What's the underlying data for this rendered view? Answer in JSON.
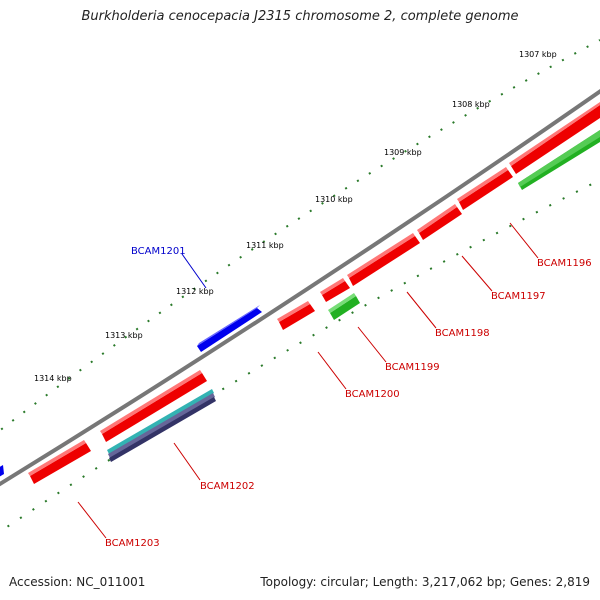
{
  "title": "Burkholderia cenocepacia J2315 chromosome 2, complete genome",
  "accession": "Accession: NC_011001",
  "summary": "Topology: circular; Length: 3,217,062 bp; Genes: 2,819",
  "colors": {
    "forward_gene": "#ff0000",
    "reverse_gene": "#0000ff",
    "other_feature": "#22b022",
    "label_red": "#cc0000",
    "label_blue": "#0000cc",
    "backbone": "#777777",
    "tick": "#2a7a2a"
  },
  "scale_labels": [
    "1307 kbp",
    "1308 kbp",
    "1309 kbp",
    "1310 kbp",
    "1311 kbp",
    "1312 kbp",
    "1313 kbp",
    "1314 kbp"
  ],
  "gene_labels": [
    {
      "name": "BCAM1196",
      "color": "red"
    },
    {
      "name": "BCAM1197",
      "color": "red"
    },
    {
      "name": "BCAM1198",
      "color": "red"
    },
    {
      "name": "BCAM1199",
      "color": "red"
    },
    {
      "name": "BCAM1200",
      "color": "red"
    },
    {
      "name": "BCAM1201",
      "color": "blue"
    },
    {
      "name": "BCAM1202",
      "color": "red"
    },
    {
      "name": "BCAM1203",
      "color": "red"
    }
  ]
}
